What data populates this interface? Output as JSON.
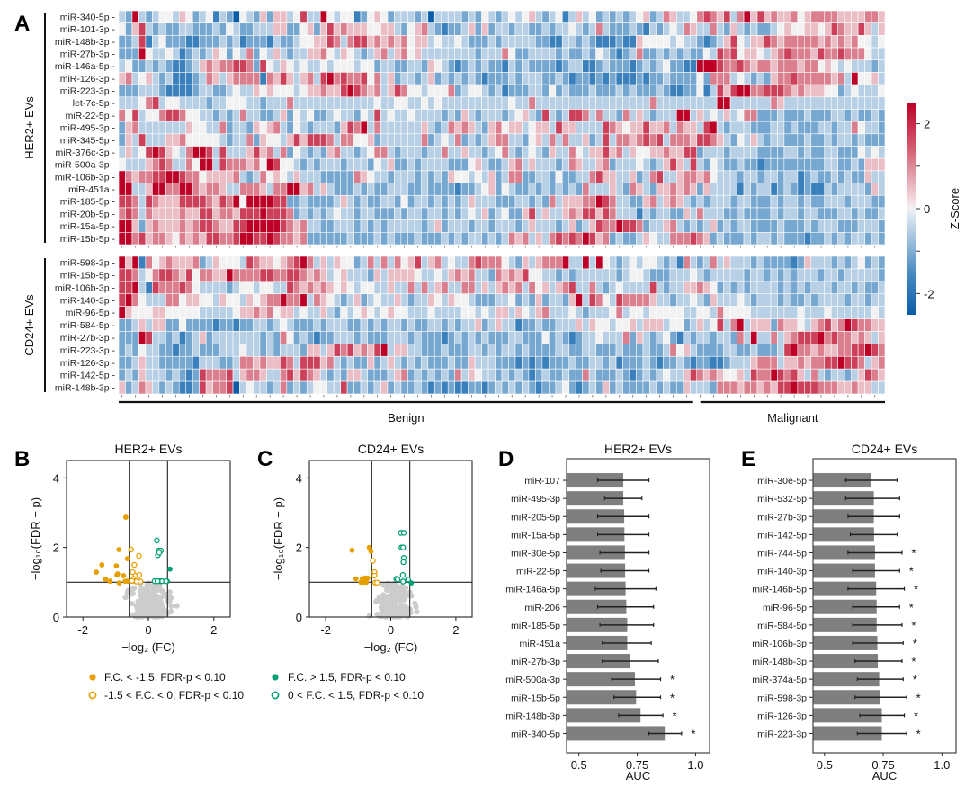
{
  "figure": {
    "panel_letters": [
      "A",
      "B",
      "C",
      "D",
      "E"
    ]
  },
  "chart_data": [
    {
      "id": "A",
      "type": "heatmap",
      "title": "",
      "colorbar": {
        "label": "Z-Score",
        "range": [
          -2.5,
          2.5
        ],
        "ticks": [
          -2,
          -1,
          0,
          1,
          2
        ],
        "tick_labels": [
          "-2",
          "",
          "0",
          "",
          "2"
        ],
        "low_color": "#2166ac",
        "mid_color": "#f7f7f7",
        "high_color": "#b2182b"
      },
      "level_encoding": {
        "a": -2.5,
        "b": -1.75,
        "c": -1.1,
        "d": -0.5,
        "e": 0,
        "f": 0.5,
        "g": 1.1,
        "h": 1.75,
        "i": 2.5
      },
      "column_groups": [
        {
          "label": "Benign",
          "count": 86
        },
        {
          "label": "Malignant",
          "count": 28
        }
      ],
      "blocks": [
        {
          "label": "HER2+ EVs",
          "rows": [
            {
              "name": "miR-340-5p",
              "values": "dcidcdeedfecdebdcaedcfcffdehddiedeebcefecdddcdaddddcdcedcdedefdcdebdfdecdcdcdefcdgfddeghgfhdgifhfgffgefggggffffggfcghgfgfi"
            },
            {
              "name": "miR-101-3p",
              "values": "ecfhdcdccddcccdcedccdddffccefcfhfgfffeeffdcefgdcbccdfcfcddcddccdcddedcdgdcccdcbdcdedgfddgdcfdcdccdefeeffefhgffhfdfghfgh"
            },
            {
              "name": "miR-148b-3p",
              "values": "ccdhbdecccbbcccdcdbcccbdccdeeffhgdghhfgfgfgeffdeddedcccdcdddddccbbddcdcbbbcbbfeeeededdcbcdfhedffhgfgggggfgfgfgeededeefe"
            },
            {
              "name": "miR-27b-3p",
              "values": "cccieddedbcdcdfecedgcedfdcddffgedfedcdfgdfgefddddddddcdddgeccddddcdccdcedcbcdgccdcdcdccedhgheffedfghgggfhgghgggeddcdcdf"
            },
            {
              "name": "miR-146a-5p",
              "values": "deccdcdcbbcdfgfgghhgchedfededdedeeedeecddccddcfedcbcdcdccbdcdccccbcddbbcdcccbcdcdeccbbiiihgghgfggfgggfggefededddcdcedd"
            },
            {
              "name": "miR-126-3p",
              "values": "fgdefdcdbbbcdgfdfggggbgfhfdfgdhighgghegdfcddcdfcdcdcdcbcccdcdddccdcbccbcbcbbbcbccdccccecgggdedcdcfgghgggggfgdieefdcegc"
            },
            {
              "name": "miR-223-3p",
              "values": "cccdddcbbbbcddccdeddfefeeedeffgffhihgfgdfhgeedeeegcdeedcdbcccddcecdcccdcccdcdcccdcbbccebdhfhiigghhhgfgfffeecdedddeccec"
            },
            {
              "name": "let-7c-5p",
              "values": "dddeghdeeddddcddeeeddcdddgddddddddddddeddeeddededdddddddddeddgdddddddddddddddddgdddddddddiiddddddgfdddddddddddddddiddd"
            },
            {
              "name": "miR-22-5p",
              "values": "gehdeeghhgeeddcdcdgddccdfcedeccdeddcedhdeddeddddcdcfdcdddcdefdchdcdhhgdgddcgdfdcdddiidfdedfdeggcccdcccdcccddcdccdccccd"
            },
            {
              "name": "miR-495-3p",
              "values": "cfgdddddddfeeddgcddcfefgdcedcdddcfhgidgddddddfdcdgfgfdcfgeffdeffdhffddddhgfeffhffgdgffdhidcdddcccddcdcccddcddgeddcccc"
            },
            {
              "name": "miR-345-5p",
              "values": "cfdhdddffgeeeeedcddgcfeedfhfhhhgdggeefcddddddgcdedgcdcdfggddcefdgdgddfcdhdggfghghdgggfhhgfdcedfdcddcccdccdcddcdccccci"
            },
            {
              "name": "miR-376c-3p",
              "values": "dfdehihfedgiihdhdddfhfgdgcedcdcfgddcdeggdcdddcddgddfddcdegdcdedcfddgedffhfgdfeeffgffhhcdddcddddccccddcdccddcccededdgg"
            },
            {
              "name": "miR-500a-3p",
              "values": "edddfghgddgeiidhgggfgeiheedcdcdddcdddcedfccdcddddcccefdccdfgdfdddcdgfddfgcdddedcdfhfdhdcedccdccbcccccccccddccdcfffffed"
            },
            {
              "name": "miR-106b-3p",
              "values": "igfgghhiihggeffffgdcdgefedfdddcccccgfeddcdddcdcdcfeededfcdggccddceccddghffddfcdghddfggfgedddcddcddcddbcdccdcdccfddfdd"
            },
            {
              "name": "miR-451a",
              "values": "iiddfiiggiigfggfddgggfdggiifgdfdcccdcdccdddccdccccbccdefcedccdcdcdcdcgdddfdcgfdcffgfgfcfddddbdcddbcdcbcbbdcddddcfdffdf"
            },
            {
              "name": "miR-185-5p",
              "values": "hhgdhgfffhhhhgfhgieiiiihhccdccccdfdcdccddcecddcdcdcdfdddcccddcdcgdfffggihgddccfgdfgfdcdcdddcddcccdcddcdccdddcdddcceed"
            },
            {
              "name": "miR-20b-5p",
              "values": "ghgdgffffgffhhfggfhhhihhhgcdcdcdeddcddcccdcddcddcdcdedfcdeccfhdfddfgfhhfhgdddbdcddccfdgdddccdccccdcddcddcccddcdccdcc"
            },
            {
              "name": "miR-15a-5p",
              "values": "iifcfgfffgfghhgffhhiiiiihgfgddccdddcdcdcdddddcdfcdddcddcdddcdfdddcdfcdfhggihhgcddfgdcdcdfcdcddccccdcccdcdddcccdddcdd"
            },
            {
              "name": "miR-15b-5p",
              "values": "iighfggfegfgfhhgghiihhihggfgccccccdcccdcdcccdcccdcdcddcdcdgfgdfdghghgihfgcdccdfeddggghgfcdcccdcddcdcccbccdcdcddcdcdcdd"
            }
          ]
        },
        {
          "label": "CD24+ EVs",
          "rows": [
            {
              "name": "miR-598-3p",
              "values": "ifibgefgfffgcdfeeedhgffefghigdfdfeecdgdgdgefhdfgdeddghgggedcfdfgggiddidiedcdedeedcdbgdcdgdfdddcdccccbcfdddcdcdecdcccdfd"
            },
            {
              "name": "miR-15b-5p",
              "values": "hhgdeghhgfheggffigggghhgghhgfgfdefdddcfdffffeddedfgfgddcgfgfheeddcdcddddddcdeedcccdddedcdddddcddcdcdcdddcddcdddddcdeed"
            },
            {
              "name": "miR-106b-3p",
              "values": "hhidbhggghgeddddcdeedeeddhgfgfgfefedeeddfddgdgdfgddggdfdfgfgdgefdfghddgdcdeddddhdcddffgfecdcdcddddcdcdcdddcddcdccdcgee"
            },
            {
              "name": "miR-140-3p",
              "values": "higedddggeffeedfeedfefggiggidgfedcdfcdeddfdcddfedfeedcccddecdcfcddcfidhgedhggggfddcddedcfdddedcdddcdccdcddddcddcddcdfd"
            },
            {
              "name": "miR-96-5p",
              "values": "ifeeeffeeeeedddddeffgfgeffdeddfdcedefedefeedddeddddeededffdfedfgdddedcdddegdeedeeeeeddeedgeeeedddddddedddeddddddedded"
            },
            {
              "name": "miR-584-5p",
              "values": "ccdfdffcceccccbccbccddcdedcccdcdddccdcdcddcdccddcdcddfcdfddbccdccdddfdfeedeefdfffdeecdfdehdgidfffcgffedfghfgihggffddgdc"
            },
            {
              "name": "miR-27b-3p",
              "values": "cccihddcdbcdfcdddddddcdcgecdcbccdddcdcccdddcdcccbcdcdcdcccddcccecdcbcddedddgcfdcdecbdcddcddcgdiddgdfghhhighggfgfdfdcc"
            },
            {
              "name": "miR-223-3p",
              "values": "cdceddccbccdcccdddeddcdcdddcffdfhghfgfhidffddcccdcccddcdcddcdccccddccddcccdcccdccdgefdccccddccdcccdhiggfgffgghhihgdgfgc"
            },
            {
              "name": "miR-126-3p",
              "values": "ccdfddcccccbdddccdggfgffhgdhhhfgdcdccfcdfdcdcdcccdccfdddcccbcbcbcccdccddcdbcccdcbccdcbccbbcdddfgggdffgfgghhihhgdfghdgcd"
            },
            {
              "name": "miR-142-5p",
              "values": "cdcfdddcdcbchggghdfggfddghfhgfdcdcffdcccdfgcdcdcdcgdfeddcdcdcbcdccdccgdcccdcbcdcdeddfhgfgfeefdhggihghfdgdcddcdfhgfgidc"
            },
            {
              "name": "miR-148b-3p",
              "values": "fcdgfdcdcbbchfgghadeddcdgcdcdeeddhccdcdfcdccdcbcbcbbccbcdcdcdcbccdecbcdcfcdccccdcdccfdddcgggfggfgfhhihhhgggffgffddhgff"
            }
          ]
        }
      ]
    },
    {
      "id": "B",
      "type": "scatter",
      "title": "HER2+ EVs",
      "xlabel": "−log₂ (FC)",
      "ylabel": "−log₁₀(FDR − p)",
      "xlim": [
        -2.5,
        2.5
      ],
      "ylim": [
        0,
        4.5
      ],
      "xticks": [
        -2,
        0,
        2
      ],
      "yticks": [
        0,
        2,
        4
      ],
      "thresholds": {
        "x": [
          -0.585,
          0.585
        ],
        "y": 1.0
      },
      "series": [
        {
          "name": "F.C. < -1.5, FDR-p < 0.10",
          "color": "#E69F00",
          "marker": "filled",
          "points": [
            [
              -0.69,
              2.87
            ],
            [
              -0.9,
              1.94
            ],
            [
              -0.64,
              1.68
            ],
            [
              -1.42,
              1.5
            ],
            [
              -0.98,
              1.47
            ],
            [
              -1.59,
              1.29
            ],
            [
              -0.94,
              1.24
            ],
            [
              -0.96,
              1.21
            ],
            [
              -0.76,
              1.19
            ],
            [
              -1.31,
              1.09
            ],
            [
              -1.17,
              1.03
            ],
            [
              -0.89,
              0.98
            ],
            [
              -0.71,
              1.03
            ],
            [
              -0.64,
              1.03
            ]
          ]
        },
        {
          "name": "-1.5 < F.C. < 0, FDR-p < 0.10",
          "color": "#E69F00",
          "marker": "open",
          "points": [
            [
              -0.53,
              1.94
            ],
            [
              -0.29,
              1.76
            ],
            [
              -0.43,
              1.5
            ],
            [
              -0.48,
              1.29
            ],
            [
              -0.39,
              1.19
            ],
            [
              -0.28,
              1.21
            ],
            [
              -0.45,
              1.1
            ],
            [
              -0.33,
              1.08
            ],
            [
              -0.41,
              1.03
            ],
            [
              -0.36,
              1.02
            ],
            [
              -0.24,
              1.02
            ],
            [
              -0.5,
              1.04
            ]
          ]
        },
        {
          "name": "F.C. > 1.5, FDR-p < 0.10",
          "color": "#009E73",
          "marker": "filled",
          "points": [
            [
              0.66,
              1.38
            ],
            [
              0.58,
              1.03
            ]
          ]
        },
        {
          "name": "0 < F.C. < 1.5, FDR-p < 0.10",
          "color": "#009E73",
          "marker": "open",
          "points": [
            [
              0.26,
              2.2
            ],
            [
              0.31,
              1.91
            ],
            [
              0.38,
              1.91
            ],
            [
              0.29,
              1.78
            ],
            [
              0.33,
              1.85
            ],
            [
              0.19,
              1.03
            ],
            [
              0.37,
              1.03
            ],
            [
              0.42,
              1.03
            ],
            [
              0.54,
              1.03
            ],
            [
              0.28,
              1.03
            ]
          ]
        },
        {
          "name": "not significant",
          "color": "#cccccc",
          "marker": "filled",
          "generated": {
            "count": 170,
            "x_spread": 0.55,
            "ymax": 1.0,
            "seed": 7
          }
        }
      ]
    },
    {
      "id": "C",
      "type": "scatter",
      "title": "CD24+ EVs",
      "xlabel": "−log₂ (FC)",
      "ylabel": "−log₁₀(FDR − p)",
      "xlim": [
        -2.5,
        2.5
      ],
      "ylim": [
        0,
        4.5
      ],
      "xticks": [
        -2,
        0,
        2
      ],
      "yticks": [
        0,
        2,
        4
      ],
      "thresholds": {
        "x": [
          -0.585,
          0.585
        ],
        "y": 1.0
      },
      "series": [
        {
          "name": "F.C. < -1.5, FDR-p < 0.10",
          "color": "#E69F00",
          "marker": "filled",
          "points": [
            [
              -1.19,
              1.92
            ],
            [
              -0.66,
              2.0
            ],
            [
              -0.61,
              1.89
            ],
            [
              -1.07,
              1.1
            ],
            [
              -0.8,
              1.12
            ],
            [
              -0.71,
              1.12
            ],
            [
              -0.92,
              1.0
            ],
            [
              -0.82,
              1.0
            ],
            [
              -0.88,
              1.1
            ],
            [
              -0.75,
              1.0
            ]
          ]
        },
        {
          "name": "-1.5 < F.C. < 0, FDR-p < 0.10",
          "color": "#E69F00",
          "marker": "open",
          "points": [
            [
              -0.55,
              1.62
            ],
            [
              -0.5,
              1.29
            ],
            [
              -0.5,
              1.19
            ],
            [
              -0.48,
              0.99
            ],
            [
              -0.42,
              0.99
            ]
          ]
        },
        {
          "name": "F.C. > 1.5, FDR-p < 0.10",
          "color": "#009E73",
          "marker": "filled",
          "points": [
            [
              0.63,
              0.98
            ]
          ]
        },
        {
          "name": "0 < F.C. < 1.5, FDR-p < 0.10",
          "color": "#009E73",
          "marker": "open",
          "points": [
            [
              0.31,
              2.42
            ],
            [
              0.4,
              2.42
            ],
            [
              0.33,
              2.0
            ],
            [
              0.38,
              2.0
            ],
            [
              0.4,
              1.7
            ],
            [
              0.39,
              1.58
            ],
            [
              0.37,
              1.21
            ],
            [
              0.17,
              1.1
            ],
            [
              0.21,
              1.08
            ],
            [
              0.53,
              1.08
            ],
            [
              0.38,
              1.02
            ]
          ]
        },
        {
          "name": "not significant",
          "color": "#cccccc",
          "marker": "filled",
          "generated": {
            "count": 150,
            "x_spread": 0.5,
            "ymax": 1.0,
            "seed": 11
          }
        }
      ]
    },
    {
      "id": "D",
      "type": "bar",
      "orientation": "horizontal",
      "title": "HER2+ EVs",
      "xlabel": "AUC",
      "xlim": [
        0.447,
        1.06
      ],
      "xticks": [
        0.5,
        0.75,
        1.0
      ],
      "xtick_labels": [
        "0.5",
        "0.75",
        "1.0"
      ],
      "bar_color": "#7f7f7f",
      "categories": [
        "miR-107",
        "miR-495-3p",
        "miR-205-5p",
        "miR-15a-5p",
        "miR-30e-5p",
        "miR-22-5p",
        "miR-146a-5p",
        "miR-206",
        "miR-185-5p",
        "miR-451a",
        "miR-27b-3p",
        "miR-500a-3p",
        "miR-15b-5p",
        "miR-148b-3p",
        "miR-340-5p"
      ],
      "values": [
        0.69,
        0.69,
        0.694,
        0.695,
        0.697,
        0.698,
        0.7,
        0.703,
        0.707,
        0.707,
        0.72,
        0.74,
        0.745,
        0.764,
        0.868
      ],
      "err_low": [
        0.58,
        0.61,
        0.58,
        0.58,
        0.59,
        0.594,
        0.57,
        0.58,
        0.59,
        0.6,
        0.6,
        0.64,
        0.65,
        0.67,
        0.8
      ],
      "err_high": [
        0.8,
        0.77,
        0.8,
        0.8,
        0.8,
        0.8,
        0.83,
        0.82,
        0.82,
        0.81,
        0.84,
        0.85,
        0.85,
        0.86,
        0.94
      ],
      "significant": [
        false,
        false,
        false,
        false,
        false,
        false,
        false,
        false,
        false,
        false,
        false,
        true,
        true,
        true,
        true
      ],
      "sig_marker": "*"
    },
    {
      "id": "E",
      "type": "bar",
      "orientation": "horizontal",
      "title": "CD24+ EVs",
      "xlabel": "AUC",
      "xlim": [
        0.451,
        1.06
      ],
      "xticks": [
        0.5,
        0.75,
        1.0
      ],
      "xtick_labels": [
        "0.5",
        "0.75",
        "1.0"
      ],
      "bar_color": "#7f7f7f",
      "categories": [
        "miR-30e-5p",
        "miR-532-5p",
        "miR-27b-3p",
        "miR-142-5p",
        "miR-744-5p",
        "miR-140-3p",
        "miR-146b-5p",
        "miR-96-5p",
        "miR-584-5p",
        "miR-106b-3p",
        "miR-148b-3p",
        "miR-374a-5p",
        "miR-598-3p",
        "miR-126-3p",
        "miR-223-3p"
      ],
      "values": [
        0.7,
        0.71,
        0.71,
        0.711,
        0.715,
        0.715,
        0.72,
        0.722,
        0.722,
        0.725,
        0.727,
        0.733,
        0.736,
        0.744,
        0.744
      ],
      "err_low": [
        0.59,
        0.59,
        0.6,
        0.61,
        0.6,
        0.62,
        0.6,
        0.62,
        0.62,
        0.62,
        0.63,
        0.64,
        0.63,
        0.65,
        0.64
      ],
      "err_high": [
        0.81,
        0.82,
        0.82,
        0.81,
        0.83,
        0.82,
        0.84,
        0.82,
        0.83,
        0.835,
        0.83,
        0.835,
        0.85,
        0.84,
        0.85
      ],
      "significant": [
        false,
        false,
        false,
        false,
        true,
        true,
        true,
        true,
        true,
        true,
        true,
        true,
        true,
        true,
        true
      ],
      "sig_marker": "*"
    }
  ],
  "legend": {
    "items": [
      {
        "label": "F.C. < -1.5, FDR-p < 0.10",
        "color": "#E69F00",
        "marker": "filled"
      },
      {
        "label": "-1.5 < F.C. < 0, FDR-p < 0.10",
        "color": "#E69F00",
        "marker": "open"
      },
      {
        "label": "F.C. > 1.5, FDR-p < 0.10",
        "color": "#009E73",
        "marker": "filled"
      },
      {
        "label": "0 < F.C. < 1.5, FDR-p < 0.10",
        "color": "#009E73",
        "marker": "open"
      }
    ]
  }
}
